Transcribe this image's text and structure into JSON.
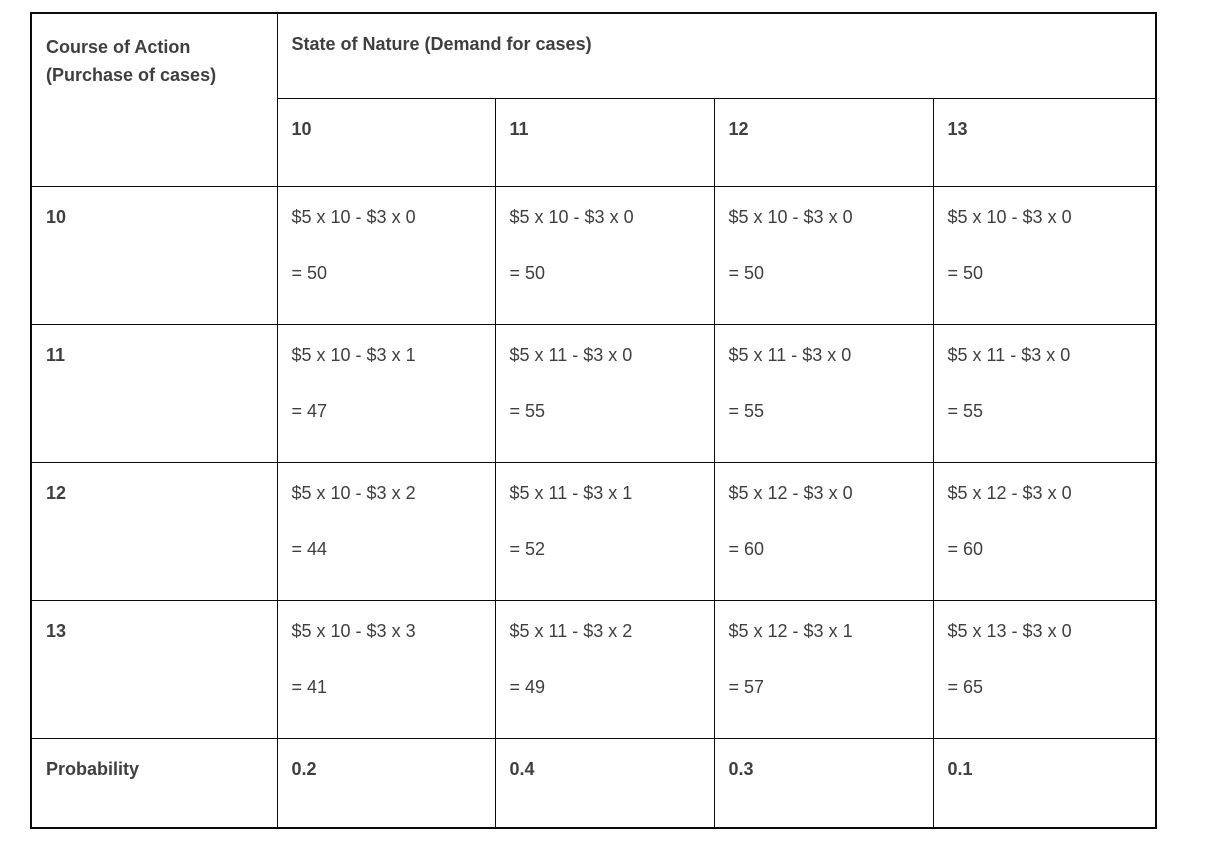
{
  "table": {
    "corner_header": "Course of Action\n(Purchase of cases)",
    "group_header": "State of Nature (Demand for cases)",
    "demand_columns": [
      "10",
      "11",
      "12",
      "13"
    ],
    "rows": [
      {
        "label": "10",
        "cells": [
          {
            "formula": "$5 x 10 - $3 x 0",
            "result": "= 50"
          },
          {
            "formula": "$5 x 10 - $3 x 0",
            "result": "= 50"
          },
          {
            "formula": "$5 x 10 - $3 x 0",
            "result": "= 50"
          },
          {
            "formula": "$5 x 10 - $3 x 0",
            "result": "= 50"
          }
        ]
      },
      {
        "label": "11",
        "cells": [
          {
            "formula": "$5 x 10 - $3 x 1",
            "result": "= 47"
          },
          {
            "formula": "$5 x 11 - $3 x 0",
            "result": "= 55"
          },
          {
            "formula": "$5 x 11 - $3 x 0",
            "result": "= 55"
          },
          {
            "formula": "$5 x 11 - $3 x 0",
            "result": "= 55"
          }
        ]
      },
      {
        "label": "12",
        "cells": [
          {
            "formula": "$5 x 10 - $3 x 2",
            "result": "= 44"
          },
          {
            "formula": "$5 x 11 - $3 x 1",
            "result": "= 52"
          },
          {
            "formula": "$5 x 12 - $3 x 0",
            "result": "= 60"
          },
          {
            "formula": "$5 x 12 - $3 x 0",
            "result": "= 60"
          }
        ]
      },
      {
        "label": "13",
        "cells": [
          {
            "formula": "$5 x 10 - $3 x 3",
            "result": "= 41"
          },
          {
            "formula": "$5 x 11 - $3 x 2",
            "result": "= 49"
          },
          {
            "formula": "$5 x 12 - $3 x 1",
            "result": "= 57"
          },
          {
            "formula": "$5 x 13 - $3 x 0",
            "result": "= 65"
          }
        ]
      }
    ],
    "probability_row": {
      "label": "Probability",
      "values": [
        "0.2",
        "0.4",
        "0.3",
        "0.1"
      ]
    },
    "colors": {
      "border": "#0b0b0b",
      "text": "#3f3f3f",
      "background": "#ffffff"
    }
  }
}
